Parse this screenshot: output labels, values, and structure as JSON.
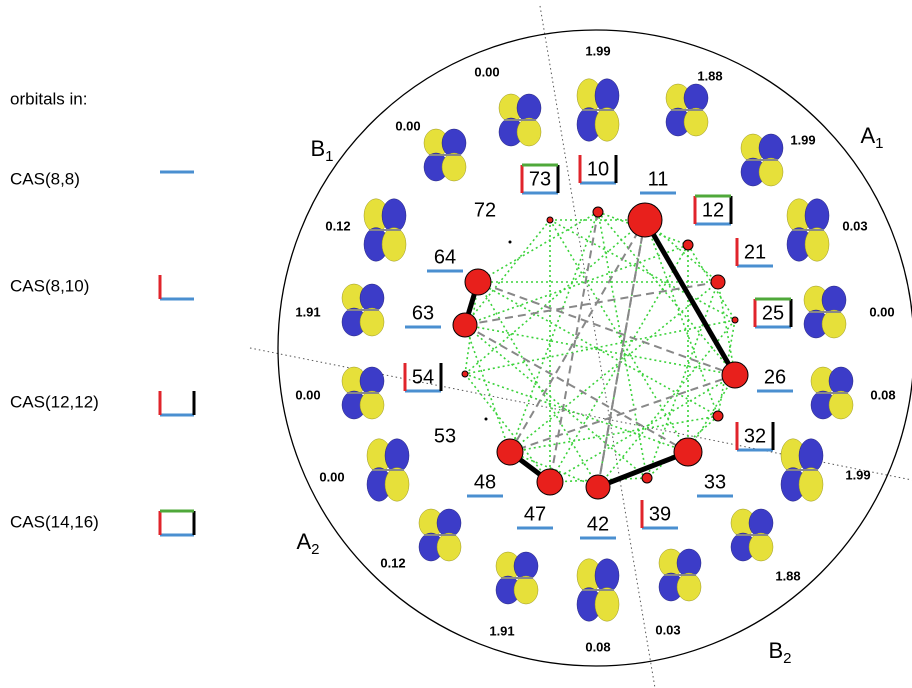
{
  "legend": {
    "title": "orbitals in:",
    "items": [
      "CAS(8,8)",
      "CAS(8,10)",
      "CAS(12,12)",
      "CAS(14,16)"
    ]
  },
  "symmetry": [
    {
      "letter": "B",
      "sub": "1"
    },
    {
      "letter": "A",
      "sub": "1"
    },
    {
      "letter": "A",
      "sub": "2"
    },
    {
      "letter": "B",
      "sub": "2"
    }
  ],
  "orbital_labels": [
    "73",
    "10",
    "11",
    "12",
    "21",
    "25",
    "26",
    "32",
    "33",
    "39",
    "42",
    "47",
    "48",
    "53",
    "54",
    "63",
    "64",
    "72"
  ],
  "occupations": [
    "1.99",
    "1.88",
    "1.99",
    "0.03",
    "0.00",
    "0.08",
    "1.99",
    "1.88",
    "0.03",
    "0.08",
    "1.91",
    "0.12",
    "0.00",
    "0.00",
    "1.91",
    "0.12",
    "0.00",
    "0.00"
  ]
}
